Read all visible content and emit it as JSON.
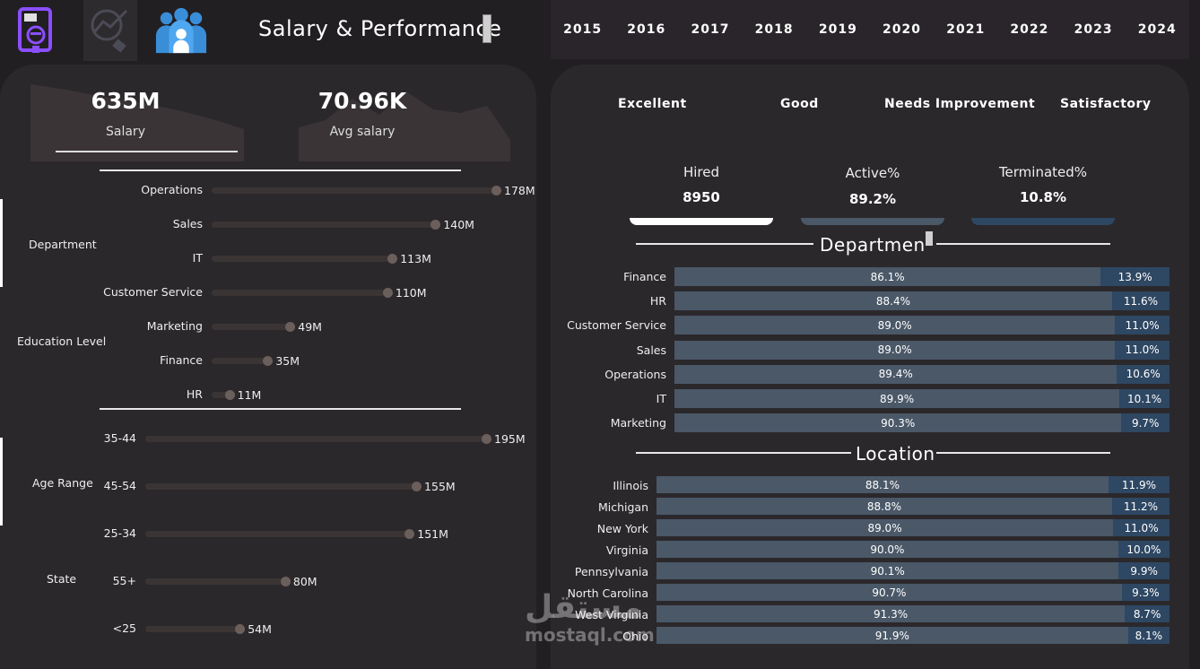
{
  "header": {
    "title": "Salary & Performance",
    "years": [
      "2015",
      "2016",
      "2017",
      "2018",
      "2019",
      "2020",
      "2021",
      "2022",
      "2023",
      "2024"
    ]
  },
  "kpis": {
    "salary_value": "635M",
    "salary_label": "Salary",
    "avg_value": "70.96K",
    "avg_label": "Avg salary"
  },
  "left": {
    "toggle_department": "Department",
    "toggle_education": "Education Level",
    "toggle_age": "Age Range",
    "toggle_state": "State",
    "department_bars": [
      {
        "label": "Operations",
        "value": 178,
        "text": "178M"
      },
      {
        "label": "Sales",
        "value": 140,
        "text": "140M"
      },
      {
        "label": "IT",
        "value": 113,
        "text": "113M"
      },
      {
        "label": "Customer Service",
        "value": 110,
        "text": "110M"
      },
      {
        "label": "Marketing",
        "value": 49,
        "text": "49M"
      },
      {
        "label": "Finance",
        "value": 35,
        "text": "35M"
      },
      {
        "label": "HR",
        "value": 11,
        "text": "11M"
      }
    ],
    "age_bars": [
      {
        "label": "35-44",
        "value": 195,
        "text": "195M"
      },
      {
        "label": "45-54",
        "value": 155,
        "text": "155M"
      },
      {
        "label": "25-34",
        "value": 151,
        "text": "151M"
      },
      {
        "label": "55+",
        "value": 80,
        "text": "80M"
      },
      {
        "label": "<25",
        "value": 54,
        "text": "54M"
      }
    ]
  },
  "right": {
    "ratings": [
      "Excellent",
      "Good",
      "Needs Improvement",
      "Satisfactory"
    ],
    "stats": {
      "hired_label": "Hired",
      "hired_value": "8950",
      "active_label": "Active%",
      "active_value": "89.2%",
      "term_label": "Terminated%",
      "term_value": "10.8%"
    },
    "dept_title": "Departmen",
    "dept_rows": [
      {
        "label": "Finance",
        "active": 86.1,
        "a": "86.1%",
        "b": "13.9%"
      },
      {
        "label": "HR",
        "active": 88.4,
        "a": "88.4%",
        "b": "11.6%"
      },
      {
        "label": "Customer Service",
        "active": 89.0,
        "a": "89.0%",
        "b": "11.0%"
      },
      {
        "label": "Sales",
        "active": 89.0,
        "a": "89.0%",
        "b": "11.0%"
      },
      {
        "label": "Operations",
        "active": 89.4,
        "a": "89.4%",
        "b": "10.6%"
      },
      {
        "label": "IT",
        "active": 89.9,
        "a": "89.9%",
        "b": "10.1%"
      },
      {
        "label": "Marketing",
        "active": 90.3,
        "a": "90.3%",
        "b": "9.7%"
      }
    ],
    "loc_title": "Location",
    "loc_rows": [
      {
        "label": "Illinois",
        "active": 88.1,
        "a": "88.1%",
        "b": "11.9%"
      },
      {
        "label": "Michigan",
        "active": 88.8,
        "a": "88.8%",
        "b": "11.2%"
      },
      {
        "label": "New York",
        "active": 89.0,
        "a": "89.0%",
        "b": "11.0%"
      },
      {
        "label": "Virginia",
        "active": 90.0,
        "a": "90.0%",
        "b": "10.0%"
      },
      {
        "label": "Pennsylvania",
        "active": 90.1,
        "a": "90.1%",
        "b": "9.9%"
      },
      {
        "label": "North Carolina",
        "active": 90.7,
        "a": "90.7%",
        "b": "9.3%"
      },
      {
        "label": "West Virginia",
        "active": 91.3,
        "a": "91.3%",
        "b": "8.7%"
      },
      {
        "label": "Ohio",
        "active": 91.9,
        "a": "91.9%",
        "b": "8.1%"
      }
    ]
  },
  "watermark": {
    "arabic": "مستقل",
    "latin": "mostaql.com"
  }
}
